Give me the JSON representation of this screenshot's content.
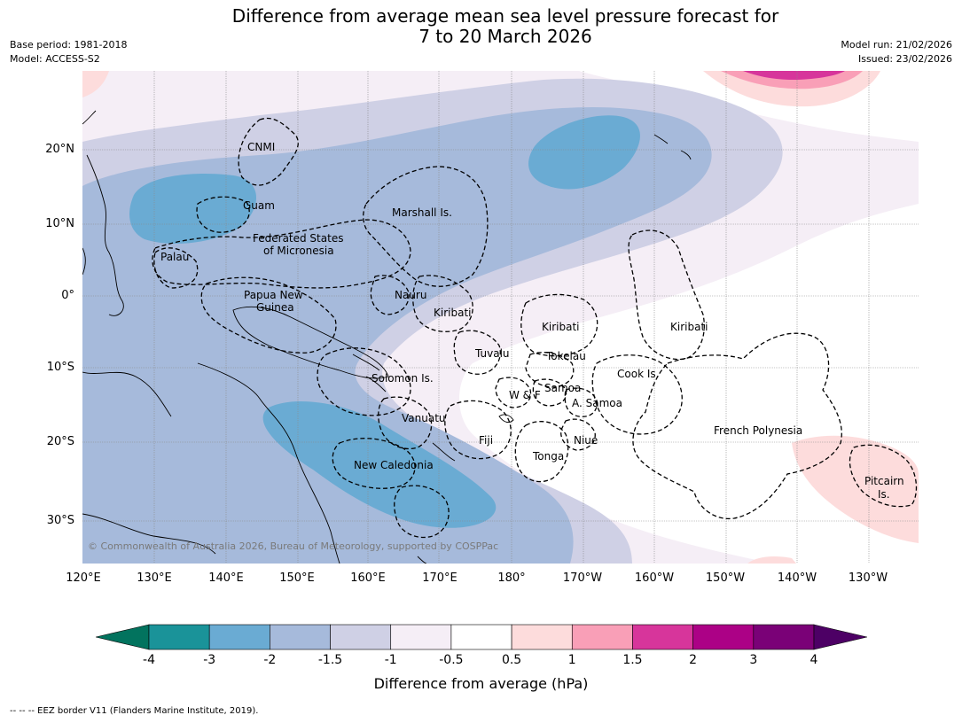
{
  "title": {
    "line1": "Difference from average mean sea level pressure forecast for",
    "line2": "7 to 20 March 2026"
  },
  "meta": {
    "base_period": "Base period: 1981-2018",
    "model": "Model: ACCESS-S2",
    "model_run": "Model run: 21/02/2026",
    "issued": "Issued: 23/02/2026"
  },
  "map": {
    "lat_labels": [
      "20°N",
      "10°N",
      "0°",
      "10°S",
      "20°S",
      "30°S"
    ],
    "lon_labels": [
      "120°E",
      "130°E",
      "140°E",
      "150°E",
      "160°E",
      "170°E",
      "180°",
      "170°W",
      "160°W",
      "150°W",
      "140°W",
      "130°W"
    ],
    "places": {
      "cnmi": "CNMI",
      "guam": "Guam",
      "marshall": "Marshall Is.",
      "fsm_1": "Federated States",
      "fsm_2": "of Micronesia",
      "palau": "Palau",
      "png_1": "Papua New",
      "png_2": "Guinea",
      "nauru": "Nauru",
      "kiribati_w": "Kiribati",
      "kiribati_c": "Kiribati",
      "kiribati_e": "Kiribati",
      "tuvalu": "Tuvalu",
      "tokelau": "Tokelau",
      "cook": "Cook Is.",
      "solomon": "Solomon Is.",
      "samoa": "Samoa",
      "wf": "W & F",
      "asamoa": "A. Samoa",
      "vanuatu": "Vanuatu",
      "fiji": "Fiji",
      "niue": "Niue",
      "tonga": "Tonga",
      "frpoly": "French Polynesia",
      "newcal": "New Caledonia",
      "pitcairn_1": "Pitcairn",
      "pitcairn_2": "Is."
    },
    "copyright": "© Commonwealth of Australia 2026, Bureau of Meteorology, supported by COSPPac"
  },
  "colorbar": {
    "title": "Difference from average (hPa)",
    "ticks": [
      "-4",
      "-3",
      "-2",
      "-1.5",
      "-1",
      "-0.5",
      "0.5",
      "1",
      "1.5",
      "2",
      "3",
      "4"
    ],
    "colors": [
      "#1a9399",
      "#6aabd3",
      "#a6badb",
      "#cfd0e5",
      "#f5eef6",
      "#ffffff",
      "#fddcdc",
      "#f99fb7",
      "#d7359b",
      "#ac0186",
      "#7a0177"
    ],
    "under_color": "#02735e",
    "over_color": "#4d0065"
  },
  "footer": "--  --  -- EEZ border V11 (Flanders Marine Institute, 2019)."
}
